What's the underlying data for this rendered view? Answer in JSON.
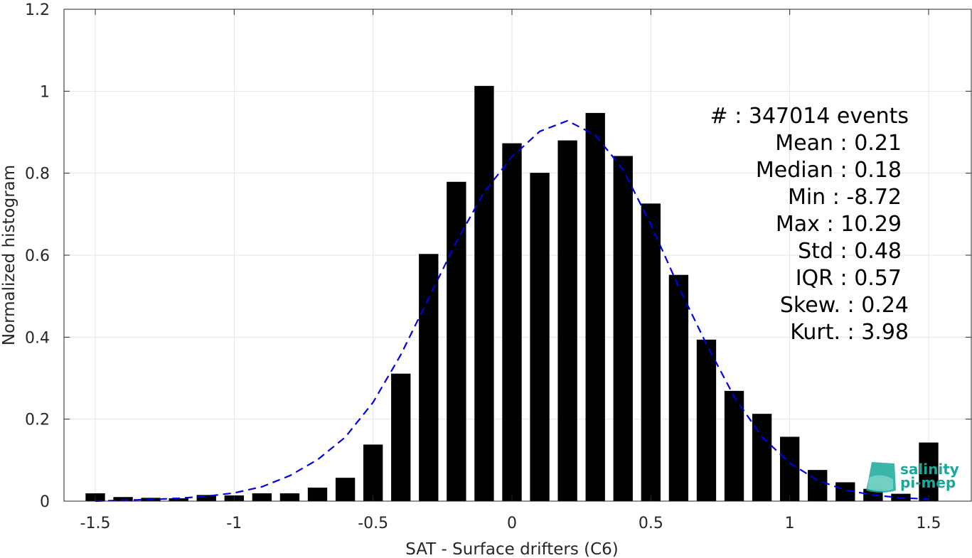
{
  "chart_data": {
    "type": "bar",
    "xlabel": "SAT - Surface drifters (C6)",
    "ylabel": "Normalized histogram",
    "xlim": [
      -1.6,
      1.6
    ],
    "ylim": [
      0,
      1.2
    ],
    "grid": true,
    "x_ticks": [
      -1.5,
      -1,
      -0.5,
      0,
      0.5,
      1,
      1.5
    ],
    "x_tick_labels": [
      "-1.5",
      "-1",
      "-0.5",
      "0",
      "0.5",
      "1",
      "1.5"
    ],
    "y_ticks": [
      0,
      0.2,
      0.4,
      0.6,
      0.8,
      1,
      1.2
    ],
    "y_tick_labels": [
      "0",
      "0.2",
      "0.4",
      "0.6",
      "0.8",
      "1",
      "1.2"
    ],
    "bar_width": 0.07,
    "series": [
      {
        "type": "bar",
        "color": "#000000",
        "x": [
          -1.5,
          -1.4,
          -1.3,
          -1.2,
          -1.1,
          -1.0,
          -0.9,
          -0.8,
          -0.7,
          -0.6,
          -0.5,
          -0.4,
          -0.3,
          -0.2,
          -0.1,
          0.0,
          0.1,
          0.2,
          0.3,
          0.4,
          0.5,
          0.6,
          0.7,
          0.8,
          0.9,
          1.0,
          1.1,
          1.2,
          1.3,
          1.4,
          1.5
        ],
        "values": [
          0.019,
          0.01,
          0.008,
          0.007,
          0.015,
          0.014,
          0.019,
          0.019,
          0.033,
          0.057,
          0.138,
          0.311,
          0.603,
          0.779,
          1.013,
          0.873,
          0.801,
          0.88,
          0.947,
          0.842,
          0.726,
          0.552,
          0.394,
          0.269,
          0.213,
          0.157,
          0.076,
          0.046,
          0.03,
          0.018,
          0.143
        ]
      },
      {
        "type": "line",
        "style": "dashed",
        "color": "#0000e6",
        "x": [
          -1.5,
          -1.4,
          -1.3,
          -1.2,
          -1.1,
          -1.0,
          -0.9,
          -0.8,
          -0.7,
          -0.6,
          -0.5,
          -0.4,
          -0.3,
          -0.2,
          -0.1,
          0.0,
          0.1,
          0.2,
          0.3,
          0.4,
          0.5,
          0.6,
          0.7,
          0.8,
          0.9,
          1.0,
          1.1,
          1.2,
          1.3,
          1.4,
          1.5
        ],
        "values": [
          0.0,
          0.002,
          0.004,
          0.007,
          0.012,
          0.02,
          0.035,
          0.062,
          0.101,
          0.156,
          0.241,
          0.357,
          0.495,
          0.633,
          0.754,
          0.84,
          0.902,
          0.928,
          0.893,
          0.809,
          0.675,
          0.523,
          0.383,
          0.255,
          0.157,
          0.093,
          0.051,
          0.027,
          0.015,
          0.008,
          0.005
        ]
      }
    ],
    "annotations": [
      "#  : 347014 events",
      "Mean : 0.21",
      "Median : 0.18",
      "Min : -8.72",
      "Max : 10.29",
      "Std : 0.48",
      "IQR : 0.57",
      "Skew. : 0.24",
      "Kurt. : 3.98"
    ]
  },
  "logo": {
    "line1": "salinity",
    "line2": "pi-mep",
    "color": "#1aa89a"
  }
}
